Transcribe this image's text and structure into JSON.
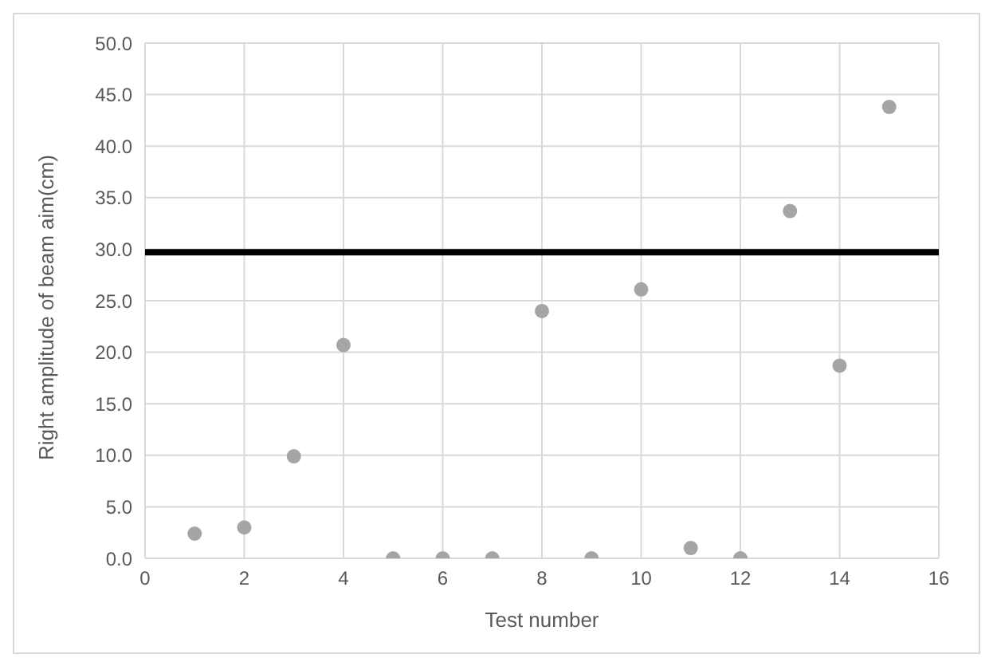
{
  "chart_data": {
    "type": "scatter",
    "xlabel": "Test number",
    "ylabel": "Right amplitude of beam aim(cm)",
    "x": [
      1,
      2,
      3,
      4,
      5,
      6,
      7,
      8,
      9,
      10,
      11,
      12,
      13,
      14,
      15
    ],
    "series": [
      {
        "color": "#a5a5a5",
        "values": [
          2.4,
          3.0,
          9.9,
          20.7,
          0,
          0,
          0,
          24.0,
          0,
          26.1,
          1.0,
          0,
          33.7,
          18.7,
          43.8
        ]
      }
    ],
    "xlim": [
      0,
      16
    ],
    "xticks": [
      0,
      2,
      4,
      6,
      8,
      10,
      12,
      14,
      16
    ],
    "ylim": [
      0,
      50
    ],
    "yticks": [
      {
        "value": 0,
        "label": "0.0"
      },
      {
        "value": 5,
        "label": "5.0"
      },
      {
        "value": 10,
        "label": "10.0"
      },
      {
        "value": 15,
        "label": "15.0"
      },
      {
        "value": 20,
        "label": "20.0"
      },
      {
        "value": 25,
        "label": "25.0"
      },
      {
        "value": 30,
        "label": "30.0"
      },
      {
        "value": 35,
        "label": "35.0"
      },
      {
        "value": 40,
        "label": "40.0"
      },
      {
        "value": 45,
        "label": "45.0"
      },
      {
        "value": 50,
        "label": "50.0"
      }
    ],
    "ref_lines": [
      {
        "axis": "y",
        "value": 29.7,
        "color": "#000000"
      }
    ],
    "grid": true,
    "marker": "circle"
  }
}
